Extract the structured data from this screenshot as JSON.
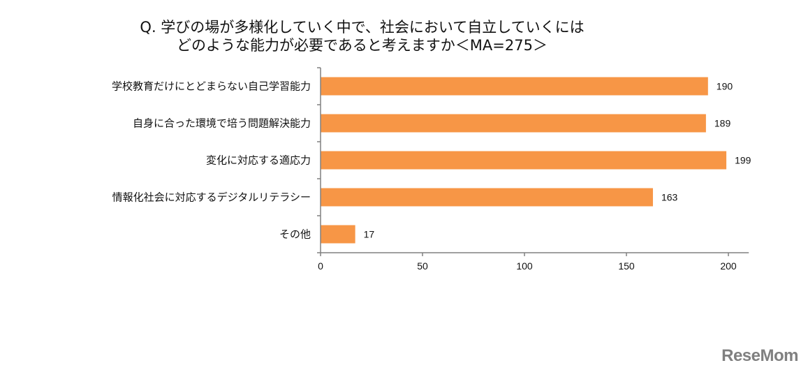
{
  "chart_data": {
    "type": "bar",
    "orientation": "horizontal",
    "title": [
      "Q. 学びの場が多様化していく中で、社会において自立していくには",
      "どのような能力が必要であると考えますか＜MA=275＞"
    ],
    "categories": [
      "学校教育だけにとどまらない自己学習能力",
      "自身に合った環境で培う問題解決能力",
      "変化に対応する適応力",
      "情報化社会に対応するデジタルリテラシー",
      "その他"
    ],
    "values": [
      190,
      189,
      199,
      163,
      17
    ],
    "xlim": [
      0,
      210
    ],
    "xticks": [
      0,
      50,
      100,
      150,
      200
    ],
    "grid": false,
    "legend": "none",
    "bar_color": "#F79646"
  },
  "watermark": "ReseMom"
}
